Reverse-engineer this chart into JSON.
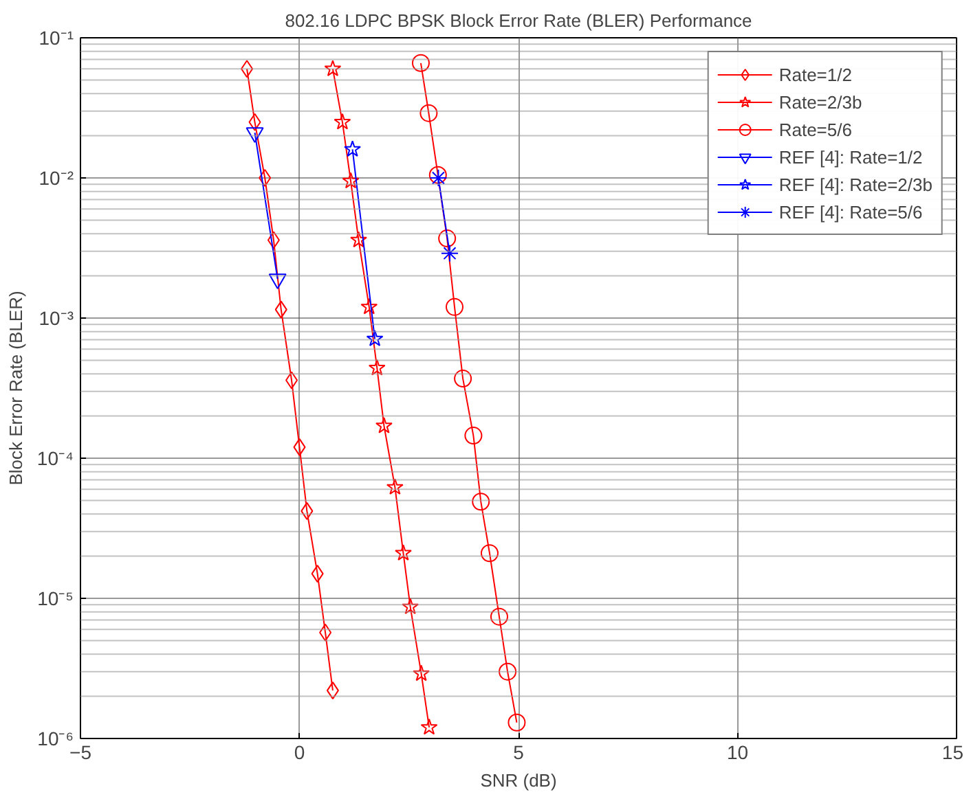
{
  "chart_data": {
    "type": "line",
    "title": "802.16 LDPC BPSK Block Error Rate (BLER) Performance",
    "xlabel": "SNR (dB)",
    "ylabel": "Block Error Rate (BLER)",
    "xlim": [
      -5,
      15
    ],
    "xticks": [
      -5,
      0,
      5,
      10,
      15
    ],
    "ylim": [
      1e-06,
      0.1
    ],
    "yticks": [
      {
        "value": 1e-06,
        "label": "10⁻⁶"
      },
      {
        "value": 1e-05,
        "label": "10⁻⁵"
      },
      {
        "value": 0.0001,
        "label": "10⁻⁴"
      },
      {
        "value": 0.001,
        "label": "10⁻³"
      },
      {
        "value": 0.01,
        "label": "10⁻²"
      },
      {
        "value": 0.1,
        "label": "10⁻¹"
      }
    ],
    "log": "y",
    "grid": true,
    "legend": "top right",
    "line_style": "solid",
    "series": [
      {
        "name": "Rate=1/2",
        "color": "#ff0000",
        "marker": "diamond",
        "x": [
          -1.2,
          -1.02,
          -0.79,
          -0.59,
          -0.42,
          -0.18,
          0.0,
          0.17,
          0.41,
          0.59,
          0.76
        ],
        "values": [
          0.06,
          0.025,
          0.01,
          0.0036,
          0.00115,
          0.00036,
          0.00012,
          4.2e-05,
          1.5e-05,
          5.7e-06,
          2.2e-06
        ]
      },
      {
        "name": "Rate=2/3b",
        "color": "#ff0000",
        "marker": "star",
        "x": [
          0.76,
          0.98,
          1.17,
          1.35,
          1.59,
          1.77,
          1.93,
          2.18,
          2.37,
          2.53,
          2.78,
          2.96
        ],
        "values": [
          0.06,
          0.025,
          0.0095,
          0.0036,
          0.0012,
          0.00044,
          0.00017,
          6.2e-05,
          2.1e-05,
          8.7e-06,
          2.9e-06,
          1.2e-06
        ]
      },
      {
        "name": "Rate=5/6",
        "color": "#ff0000",
        "marker": "circle",
        "x": [
          2.77,
          2.95,
          3.16,
          3.37,
          3.54,
          3.73,
          3.97,
          4.14,
          4.34,
          4.56,
          4.75,
          4.96
        ],
        "values": [
          0.066,
          0.029,
          0.0105,
          0.0037,
          0.0012,
          0.00037,
          0.000145,
          4.9e-05,
          2.1e-05,
          7.4e-06,
          3e-06,
          1.3e-06
        ]
      },
      {
        "name": "REF [4]: Rate=1/2",
        "color": "#0000ff",
        "marker": "triangle",
        "x": [
          -1.02,
          -0.5
        ],
        "values": [
          0.021,
          0.0019
        ]
      },
      {
        "name": "REF [4]: Rate=2/3b",
        "color": "#0000ff",
        "marker": "star",
        "x": [
          1.21,
          1.72
        ],
        "values": [
          0.016,
          0.00071
        ]
      },
      {
        "name": "REF [4]: Rate=5/6",
        "color": "#0000ff",
        "marker": "cross",
        "x": [
          3.17,
          3.43
        ],
        "values": [
          0.01,
          0.0029
        ]
      }
    ]
  }
}
